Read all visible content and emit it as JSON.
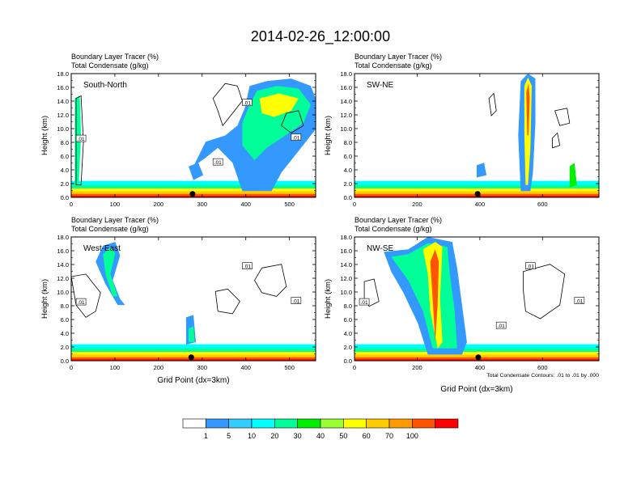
{
  "title": "2014-02-26_12:00:00",
  "field_labels": [
    "Boundary Layer Tracer   (%)",
    "Total Condensate   (g/kg)"
  ],
  "chart_data": [
    {
      "type": "heatmap",
      "panel": "South-North",
      "ylabel": "Height (km)",
      "xlabel": "",
      "ylim": [
        0,
        18
      ],
      "xlim": [
        0,
        560
      ],
      "yticks": [
        "0.0",
        "2.0",
        "4.0",
        "6.0",
        "8.0",
        "10.0",
        "12.0",
        "14.0",
        "16.0",
        "18.0"
      ],
      "xticks": [
        0,
        100,
        200,
        300,
        400,
        500
      ],
      "xticklabels": [
        "0",
        "100",
        "200",
        "300",
        "400",
        "500"
      ],
      "marker_x": 278,
      "contour_labels": [
        ".01",
        ".01",
        ".01",
        ".01"
      ]
    },
    {
      "type": "heatmap",
      "panel": "SW-NE",
      "ylabel": "Height (km)",
      "xlabel": "",
      "ylim": [
        0,
        18
      ],
      "xlim": [
        0,
        780
      ],
      "yticks": [
        "0.0",
        "2.0",
        "4.0",
        "6.0",
        "8.0",
        "10.0",
        "12.0",
        "14.0",
        "16.0",
        "18.0"
      ],
      "xticks": [
        0,
        200,
        400,
        600
      ],
      "xticklabels": [
        "0",
        "200",
        "400",
        "600"
      ],
      "marker_x": 393
    },
    {
      "type": "heatmap",
      "panel": "West-East",
      "ylabel": "Height (km)",
      "xlabel": "Grid Point (dx=3km)",
      "ylim": [
        0,
        18
      ],
      "xlim": [
        0,
        560
      ],
      "yticks": [
        "0.0",
        "2.0",
        "4.0",
        "6.0",
        "8.0",
        "10.0",
        "12.0",
        "14.0",
        "16.0",
        "18.0"
      ],
      "xticks": [
        0,
        100,
        200,
        300,
        400,
        500
      ],
      "xticklabels": [
        "0",
        "100",
        "200",
        "300",
        "400",
        "500"
      ],
      "marker_x": 275,
      "contour_labels": [
        ".01",
        ".01",
        ".01"
      ]
    },
    {
      "type": "heatmap",
      "panel": "NW-SE",
      "ylabel": "Height (km)",
      "xlabel": "Grid Point (dx=3km)",
      "ylim": [
        0,
        18
      ],
      "xlim": [
        0,
        780
      ],
      "yticks": [
        "0.0",
        "2.0",
        "4.0",
        "6.0",
        "8.0",
        "10.0",
        "12.0",
        "14.0",
        "16.0",
        "18.0"
      ],
      "xticks": [
        0,
        200,
        400,
        600
      ],
      "xticklabels": [
        "0",
        "200",
        "400",
        "600"
      ],
      "marker_x": 395,
      "contour_labels": [
        ".01",
        ".01",
        ".01",
        ".01"
      ],
      "note": "Total Condensate Contours: .01 to .01 by .000"
    }
  ],
  "colorbar": {
    "labels": [
      "1",
      "5",
      "10",
      "20",
      "30",
      "40",
      "50",
      "60",
      "70",
      "100"
    ],
    "colors": [
      "#ffffff",
      "#3399ff",
      "#33ccff",
      "#00ffff",
      "#00ff99",
      "#00ee00",
      "#99ff33",
      "#ffff00",
      "#ffcc00",
      "#ff9900",
      "#ff5500",
      "#ff0000"
    ]
  }
}
